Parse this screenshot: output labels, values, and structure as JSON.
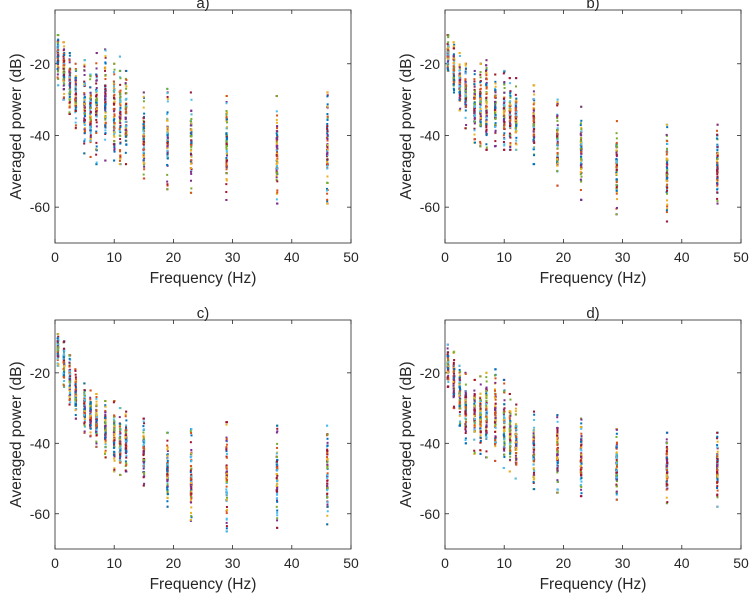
{
  "chart_data": [
    {
      "type": "scatter",
      "title": "a)",
      "xlabel": "Frequency (Hz)",
      "ylabel": "Averaged power (dB)",
      "xlim": [
        0,
        50
      ],
      "ylim": [
        -70,
        -5
      ],
      "xticks": [
        "0",
        "10",
        "20",
        "30",
        "40",
        "50"
      ],
      "yticks": [
        "-20",
        "-40",
        "-60"
      ],
      "grid": false,
      "legend": "none",
      "series": [
        {
          "x": [
            0.5,
            1.5,
            2.5,
            3.5,
            5,
            6,
            7,
            8.5,
            10,
            11,
            12,
            15,
            19,
            23,
            29,
            37.5,
            46
          ],
          "y_min": [
            -26,
            -30,
            -34,
            -38,
            -45,
            -46,
            -48,
            -47,
            -47,
            -48,
            -48,
            -52,
            -55,
            -56,
            -58,
            -59,
            -59
          ],
          "y_max": [
            -12,
            -14,
            -17,
            -20,
            -19,
            -23,
            -17,
            -16,
            -20,
            -18,
            -22,
            -28,
            -27,
            -28,
            -29,
            -29,
            -28
          ]
        }
      ]
    },
    {
      "type": "scatter",
      "title": "b)",
      "xlabel": "Frequency (Hz)",
      "ylabel": "Averaged power (dB)",
      "xlim": [
        0,
        50
      ],
      "ylim": [
        -70,
        -5
      ],
      "xticks": [
        "0",
        "10",
        "20",
        "30",
        "40",
        "50"
      ],
      "yticks": [
        "-20",
        "-40",
        "-60"
      ],
      "grid": false,
      "legend": "none",
      "series": [
        {
          "x": [
            0.5,
            1.5,
            2.5,
            3.5,
            5,
            6,
            7,
            8.5,
            10,
            11,
            12,
            15,
            19,
            23,
            29,
            37.5,
            46
          ],
          "y_min": [
            -22,
            -28,
            -33,
            -38,
            -42,
            -43,
            -44,
            -43,
            -44,
            -44,
            -44,
            -48,
            -54,
            -58,
            -62,
            -64,
            -59
          ],
          "y_max": [
            -12,
            -14,
            -17,
            -20,
            -22,
            -20,
            -19,
            -23,
            -22,
            -24,
            -24,
            -26,
            -30,
            -32,
            -36,
            -37,
            -37
          ]
        }
      ]
    },
    {
      "type": "scatter",
      "title": "c)",
      "xlabel": "Frequency (Hz)",
      "ylabel": "Averaged power (dB)",
      "xlim": [
        0,
        50
      ],
      "ylim": [
        -70,
        -5
      ],
      "xticks": [
        "0",
        "10",
        "20",
        "30",
        "40",
        "50"
      ],
      "yticks": [
        "-20",
        "-40",
        "-60"
      ],
      "grid": false,
      "legend": "none",
      "series": [
        {
          "x": [
            0.5,
            1.5,
            2.5,
            3.5,
            5,
            6,
            7,
            8.5,
            10,
            11,
            12,
            15,
            19,
            23,
            29,
            37.5,
            46
          ],
          "y_min": [
            -18,
            -24,
            -29,
            -33,
            -37,
            -38,
            -41,
            -44,
            -48,
            -49,
            -48,
            -52,
            -58,
            -62,
            -65,
            -64,
            -63
          ],
          "y_max": [
            -9,
            -11,
            -15,
            -19,
            -23,
            -25,
            -26,
            -28,
            -28,
            -30,
            -31,
            -33,
            -37,
            -36,
            -34,
            -35,
            -35
          ]
        }
      ]
    },
    {
      "type": "scatter",
      "title": "d)",
      "xlabel": "Frequency (Hz)",
      "ylabel": "Averaged power (dB)",
      "xlim": [
        0,
        50
      ],
      "ylim": [
        -70,
        -5
      ],
      "xticks": [
        "0",
        "10",
        "20",
        "30",
        "40",
        "50"
      ],
      "yticks": [
        "-20",
        "-40",
        "-60"
      ],
      "grid": false,
      "legend": "none",
      "series": [
        {
          "x": [
            0.5,
            1.5,
            2.5,
            3.5,
            5,
            6,
            7,
            8.5,
            10,
            11,
            12,
            15,
            19,
            23,
            29,
            37.5,
            46
          ],
          "y_min": [
            -24,
            -30,
            -35,
            -40,
            -43,
            -43,
            -44,
            -45,
            -47,
            -48,
            -50,
            -53,
            -54,
            -55,
            -56,
            -57,
            -58
          ],
          "y_max": [
            -12,
            -14,
            -18,
            -20,
            -22,
            -21,
            -20,
            -19,
            -22,
            -26,
            -29,
            -31,
            -32,
            -33,
            -36,
            -37,
            -37
          ]
        }
      ]
    }
  ]
}
